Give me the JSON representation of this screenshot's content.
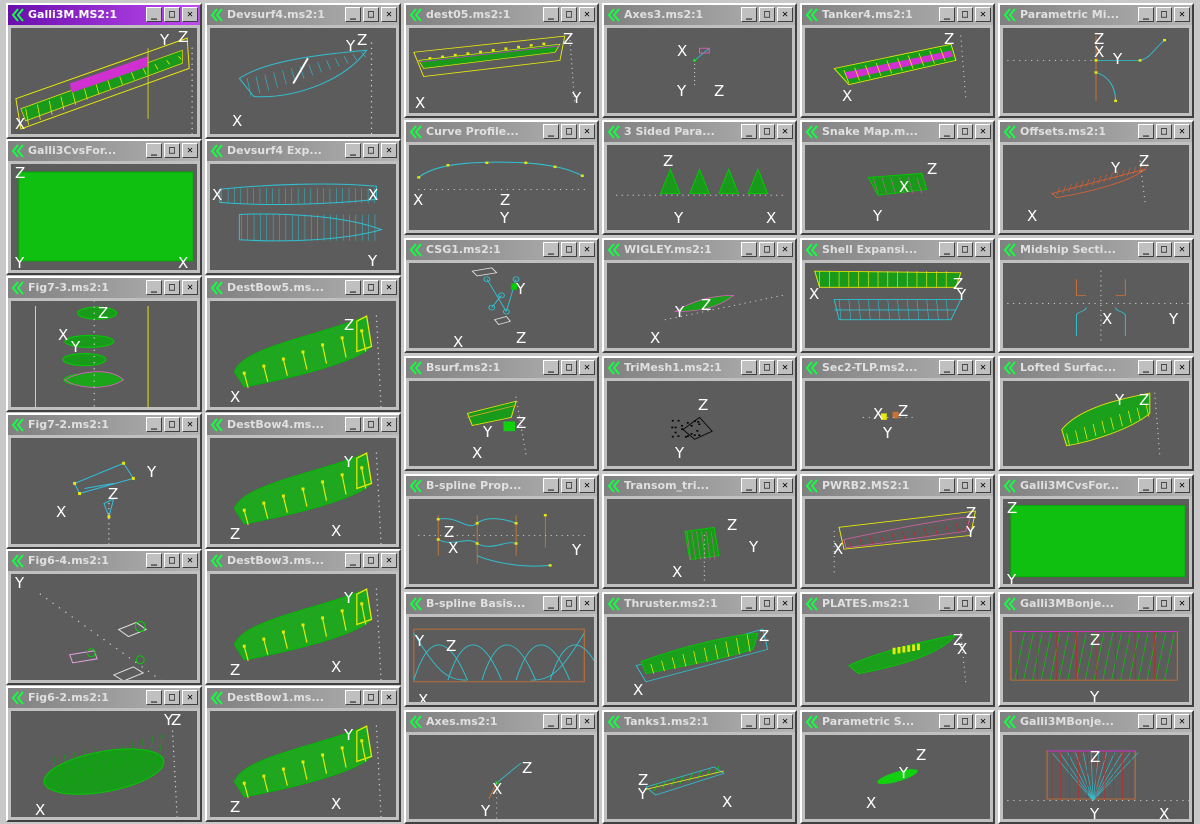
{
  "window_buttons": {
    "minimize": "_",
    "maximize": "□",
    "close": "✕"
  },
  "windows": [
    {
      "title": "Galli3M.MS2:1",
      "active": true,
      "icon": "app-chevron-icon",
      "content": "hull-yellow",
      "axes": [
        "X",
        "Y",
        "Z"
      ]
    },
    {
      "title": "Galli3CvsFor...",
      "icon": "app-chevron-icon",
      "content": "green-rect",
      "axes": [
        "Z",
        "Y",
        "X"
      ]
    },
    {
      "title": "Fig7-3.ms2:1",
      "icon": "app-chevron-icon",
      "content": "fig73",
      "axes": [
        "X",
        "Y",
        "Z"
      ]
    },
    {
      "title": "Fig7-2.ms2:1",
      "icon": "app-chevron-icon",
      "content": "fig72",
      "axes": [
        "X",
        "Y",
        "Z"
      ]
    },
    {
      "title": "Fig6-4.ms2:1",
      "icon": "app-chevron-icon",
      "content": "fig64",
      "axes": [
        "Y"
      ]
    },
    {
      "title": "Fig6-2.ms2:1",
      "icon": "app-chevron-icon",
      "content": "fig62",
      "axes": [
        "Y",
        "Z",
        "X"
      ]
    },
    {
      "title": "Devsurf4.ms2:1",
      "icon": "app-chevron-icon",
      "content": "devsurf",
      "axes": [
        "Y",
        "Z",
        "X"
      ]
    },
    {
      "title": "Devsurf4 Exp...",
      "icon": "app-chevron-icon",
      "content": "devexp",
      "axes": [
        "X",
        "X",
        "Y"
      ]
    },
    {
      "title": "DestBow5.ms...",
      "icon": "app-chevron-icon",
      "content": "bow",
      "axes": [
        "Z",
        "X"
      ]
    },
    {
      "title": "DestBow4.ms...",
      "icon": "app-chevron-icon",
      "content": "bow",
      "axes": [
        "Y",
        "Z",
        "X"
      ]
    },
    {
      "title": "DestBow3.ms...",
      "icon": "app-chevron-icon",
      "content": "bow",
      "axes": [
        "Y",
        "Z",
        "X"
      ]
    },
    {
      "title": "DestBow1.ms...",
      "icon": "app-chevron-icon",
      "content": "bow",
      "axes": [
        "Y",
        "Z",
        "X"
      ]
    },
    {
      "title": "dest05.ms2:1",
      "icon": "app-chevron-icon",
      "content": "dest05",
      "axes": [
        "Z",
        "X",
        "Y"
      ]
    },
    {
      "title": "Curve Profile...",
      "icon": "app-chevron-icon",
      "content": "curve",
      "axes": [
        "X",
        "Z",
        "Y"
      ]
    },
    {
      "title": "CSG1.ms2:1",
      "icon": "app-chevron-icon",
      "content": "csg",
      "axes": [
        "Y",
        "X",
        "Z"
      ]
    },
    {
      "title": "Bsurf.ms2:1",
      "icon": "app-chevron-icon",
      "content": "bsurf",
      "axes": [
        "Y",
        "Z",
        "X"
      ]
    },
    {
      "title": "B-spline Prop...",
      "icon": "app-chevron-icon",
      "content": "bprop",
      "axes": [
        "Z",
        "X",
        "Y"
      ]
    },
    {
      "title": "B-spline Basis...",
      "icon": "app-chevron-icon",
      "content": "bbasis",
      "axes": [
        "Y",
        "Z",
        "X"
      ]
    },
    {
      "title": "Axes.ms2:1",
      "icon": "app-chevron-icon",
      "content": "axes",
      "axes": [
        "Z",
        "X",
        "Y"
      ]
    },
    {
      "title": "Axes3.ms2:1",
      "icon": "app-chevron-icon",
      "content": "axes3",
      "axes": [
        "X",
        "Y",
        "Z"
      ]
    },
    {
      "title": "3 Sided Para...",
      "icon": "app-chevron-icon",
      "content": "cones",
      "axes": [
        "Z",
        "Y",
        "X"
      ]
    },
    {
      "title": "WIGLEY.ms2:1",
      "icon": "app-chevron-icon",
      "content": "wigley",
      "axes": [
        "Y",
        "Z",
        "X"
      ]
    },
    {
      "title": "TriMesh1.ms2:1",
      "icon": "app-chevron-icon",
      "content": "trimesh",
      "axes": [
        "Z",
        "Y"
      ]
    },
    {
      "title": "Transom_tri...",
      "icon": "app-chevron-icon",
      "content": "transom",
      "axes": [
        "Z",
        "Y",
        "X"
      ]
    },
    {
      "title": "Thruster.ms2:1",
      "icon": "app-chevron-icon",
      "content": "thruster",
      "axes": [
        "Z",
        "X"
      ]
    },
    {
      "title": "Tanks1.ms2:1",
      "icon": "app-chevron-icon",
      "content": "tanks",
      "axes": [
        "Z",
        "Y",
        "X"
      ]
    },
    {
      "title": "Tanker4.ms2:1",
      "icon": "app-chevron-icon",
      "content": "tanker",
      "axes": [
        "Z",
        "X"
      ]
    },
    {
      "title": "Snake Map.m...",
      "icon": "app-chevron-icon",
      "content": "snake",
      "axes": [
        "Z",
        "X",
        "Y"
      ]
    },
    {
      "title": "Shell Expansi...",
      "icon": "app-chevron-icon",
      "content": "shell",
      "axes": [
        "Z",
        "X",
        "Y"
      ]
    },
    {
      "title": "Sec2-TLP.ms2...",
      "icon": "app-chevron-icon",
      "content": "tlp",
      "axes": [
        "X",
        "Z",
        "Y"
      ]
    },
    {
      "title": "PWRB2.MS2:1",
      "icon": "app-chevron-icon",
      "content": "pwrb",
      "axes": [
        "Z",
        "Y",
        "X"
      ]
    },
    {
      "title": "PLATES.ms2:1",
      "icon": "app-chevron-icon",
      "content": "plates",
      "axes": [
        "Z",
        "X"
      ]
    },
    {
      "title": "Parametric S...",
      "icon": "app-chevron-icon",
      "content": "params",
      "axes": [
        "Z",
        "Y",
        "X"
      ]
    },
    {
      "title": "Parametric Mi...",
      "icon": "app-chevron-icon",
      "content": "paramm",
      "axes": [
        "Z",
        "X",
        "Y"
      ]
    },
    {
      "title": "Offsets.ms2:1",
      "icon": "app-chevron-icon",
      "content": "offsets",
      "axes": [
        "Y",
        "Z",
        "X"
      ]
    },
    {
      "title": "Midship Secti...",
      "icon": "app-chevron-icon",
      "content": "midship",
      "axes": [
        "X",
        "Y"
      ]
    },
    {
      "title": "Lofted Surfac...",
      "icon": "app-chevron-icon",
      "content": "lofted",
      "axes": [
        "Y",
        "Z"
      ]
    },
    {
      "title": "Galli3MCvsFor...",
      "icon": "app-chevron-icon",
      "content": "green-rect",
      "axes": [
        "Z",
        "Y"
      ]
    },
    {
      "title": "Galli3MBonje...",
      "icon": "app-chevron-icon",
      "content": "bonje1",
      "axes": [
        "Z",
        "Y"
      ]
    },
    {
      "title": "Galli3MBonje...",
      "icon": "app-chevron-icon",
      "content": "bonje2",
      "axes": [
        "Z",
        "Y",
        "X"
      ]
    }
  ]
}
